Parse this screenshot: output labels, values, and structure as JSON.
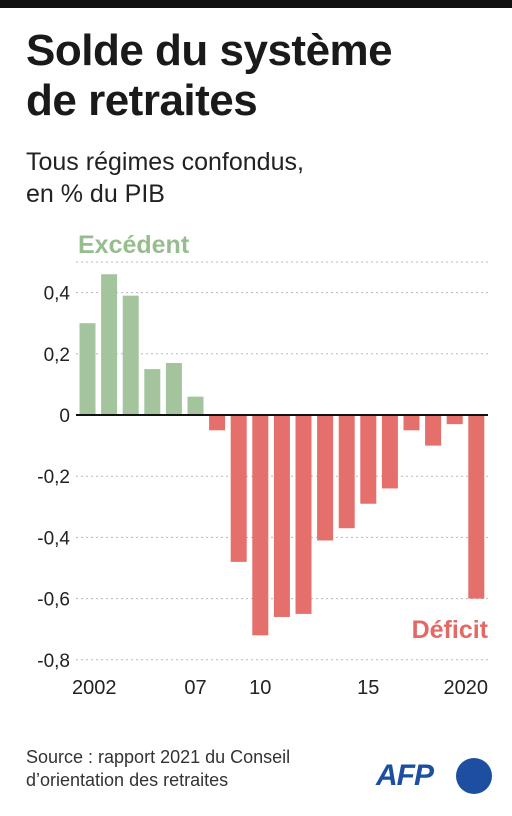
{
  "header": {
    "title_line1": "Solde du système",
    "title_line2": "de retraites",
    "subtitle_line1": "Tous régimes confondus,",
    "subtitle_line2": "en % du PIB"
  },
  "footer": {
    "source_line1": "Source : rapport 2021 du Conseil",
    "source_line2": "d’orientation des retraites",
    "logo_text": "AFP"
  },
  "colors": {
    "surplus": "#a3c49d",
    "deficit": "#e56f6a",
    "surplus_label": "#97bd8f",
    "deficit_label": "#e16a65",
    "grid": "#b8b8b8",
    "axis": "#111111",
    "logo": "#1c4fa0"
  },
  "chart_data": {
    "type": "bar",
    "title": "Solde du système de retraites",
    "subtitle": "Tous régimes confondus, en % du PIB",
    "x": [
      2002,
      2003,
      2004,
      2005,
      2006,
      2007,
      2008,
      2009,
      2010,
      2011,
      2012,
      2013,
      2014,
      2015,
      2016,
      2017,
      2018,
      2019,
      2020
    ],
    "values": [
      0.3,
      0.46,
      0.39,
      0.15,
      0.17,
      0.06,
      -0.05,
      -0.48,
      -0.72,
      -0.66,
      -0.65,
      -0.41,
      -0.37,
      -0.29,
      -0.24,
      -0.05,
      -0.1,
      -0.03,
      -0.6
    ],
    "x_tick_labels": [
      {
        "year": 2002,
        "label": "2002"
      },
      {
        "year": 2007,
        "label": "07"
      },
      {
        "year": 2010,
        "label": "10"
      },
      {
        "year": 2015,
        "label": "15"
      },
      {
        "year": 2020,
        "label": "2020"
      }
    ],
    "y_ticks": [
      0.4,
      0.2,
      0,
      -0.2,
      -0.4,
      -0.6,
      -0.8
    ],
    "y_tick_labels": [
      "0,4",
      "0,2",
      "0",
      "-0,2",
      "-0,4",
      "-0,6",
      "-0,8"
    ],
    "ylim": [
      -0.8,
      0.5
    ],
    "grid": true,
    "annotations": [
      {
        "text": "Excédent",
        "position": "top-left"
      },
      {
        "text": "Déficit",
        "position": "bottom-right"
      }
    ],
    "xlabel": "",
    "ylabel": ""
  }
}
